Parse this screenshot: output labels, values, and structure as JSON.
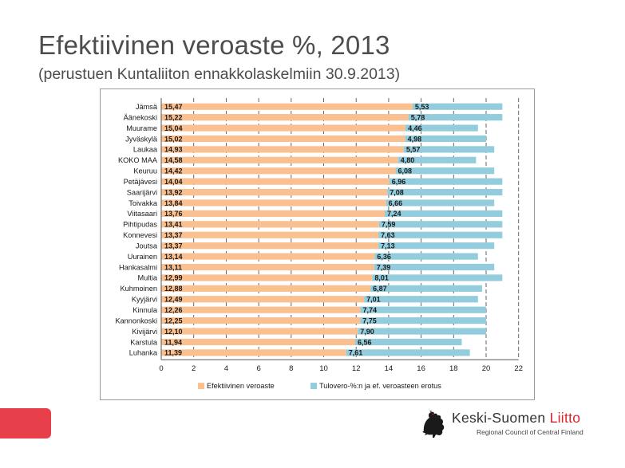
{
  "slide": {
    "title": "Efektiivinen veroaste %, 2013",
    "subtitle": "(perustuen Kuntaliiton ennakkolaskelmiin 30.9.2013)"
  },
  "logo": {
    "name_part1": "Keski-Suomen",
    "name_part2": "Liitto",
    "sub": "Regional Council of Central Finland"
  },
  "colors": {
    "series1": "#fac090",
    "series2": "#93cddd",
    "brand_red": "#e8404a"
  },
  "chart_data": {
    "type": "bar",
    "orientation": "horizontal",
    "stacked": true,
    "categories": [
      "Jämsä",
      "Äänekoski",
      "Muurame",
      "Jyväskylä",
      "Laukaa",
      "KOKO MAA",
      "Keuruu",
      "Petäjävesi",
      "Saarijärvi",
      "Toivakka",
      "Viitasaari",
      "Pihtipudas",
      "Konnevesi",
      "Joutsa",
      "Uurainen",
      "Hankasalmi",
      "Multia",
      "Kuhmoinen",
      "Kyyjärvi",
      "Kinnula",
      "Kannonkoski",
      "Kivijärvi",
      "Karstula",
      "Luhanka"
    ],
    "series": [
      {
        "name": "Efektiivinen veroaste",
        "values": [
          15.47,
          15.22,
          15.04,
          15.02,
          14.93,
          14.58,
          14.42,
          14.04,
          13.92,
          13.84,
          13.76,
          13.41,
          13.37,
          13.37,
          13.14,
          13.11,
          12.99,
          12.88,
          12.49,
          12.26,
          12.25,
          12.1,
          11.94,
          11.39
        ],
        "labels": [
          "15,47",
          "15,22",
          "15,04",
          "15,02",
          "14,93",
          "14,58",
          "14,42",
          "14,04",
          "13,92",
          "13,84",
          "13,76",
          "13,41",
          "13,37",
          "13,37",
          "13,14",
          "13,11",
          "12,99",
          "12,88",
          "12,49",
          "12,26",
          "12,25",
          "12,10",
          "11,94",
          "11,39"
        ]
      },
      {
        "name": "Tulovero-%:n ja ef. veroasteen erotus",
        "values": [
          5.53,
          5.78,
          4.46,
          4.98,
          5.57,
          4.8,
          6.08,
          6.96,
          7.08,
          6.66,
          7.24,
          7.59,
          7.63,
          7.13,
          6.36,
          7.39,
          8.01,
          6.87,
          7.01,
          7.74,
          7.75,
          7.9,
          6.56,
          7.61
        ],
        "labels": [
          "5,53",
          "5,78",
          "4,46",
          "4,98",
          "5,57",
          "4,80",
          "6,08",
          "6,96",
          "7,08",
          "6,66",
          "7,24",
          "7,59",
          "7,63",
          "7,13",
          "6,36",
          "7,39",
          "8,01",
          "6,87",
          "7,01",
          "7,74",
          "7,75",
          "7,90",
          "6,56",
          "7,61"
        ]
      }
    ],
    "xlim": [
      0,
      22
    ],
    "xticks": [
      "0",
      "2",
      "4",
      "6",
      "8",
      "10",
      "12",
      "14",
      "16",
      "18",
      "20",
      "22"
    ],
    "grid": "vertical-dashed",
    "legend": "bottom"
  }
}
